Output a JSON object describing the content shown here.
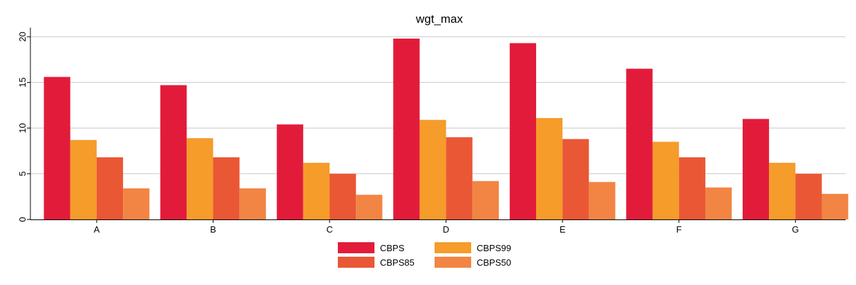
{
  "chart_data": {
    "type": "bar",
    "title": "wgt_max",
    "xlabel": "",
    "ylabel": "",
    "categories": [
      "A",
      "B",
      "C",
      "D",
      "E",
      "F",
      "G"
    ],
    "ylim": [
      0,
      21
    ],
    "yticks": [
      "0",
      "5",
      "10",
      "15",
      "20"
    ],
    "grid": true,
    "legend_position": "bottom",
    "series": [
      {
        "name": "CBPS",
        "color": "#e31b3a",
        "values": [
          15.6,
          14.7,
          10.4,
          19.8,
          19.3,
          16.5,
          11.0
        ]
      },
      {
        "name": "CBPS99",
        "color": "#f59c2b",
        "values": [
          8.7,
          8.9,
          6.2,
          10.9,
          11.1,
          8.5,
          6.2
        ]
      },
      {
        "name": "CBPS85",
        "color": "#ea5735",
        "values": [
          6.8,
          6.8,
          5.0,
          9.0,
          8.8,
          6.8,
          5.0
        ]
      },
      {
        "name": "CBPS50",
        "color": "#f28544",
        "values": [
          3.4,
          3.4,
          2.7,
          4.2,
          4.1,
          3.5,
          2.8
        ]
      }
    ]
  }
}
